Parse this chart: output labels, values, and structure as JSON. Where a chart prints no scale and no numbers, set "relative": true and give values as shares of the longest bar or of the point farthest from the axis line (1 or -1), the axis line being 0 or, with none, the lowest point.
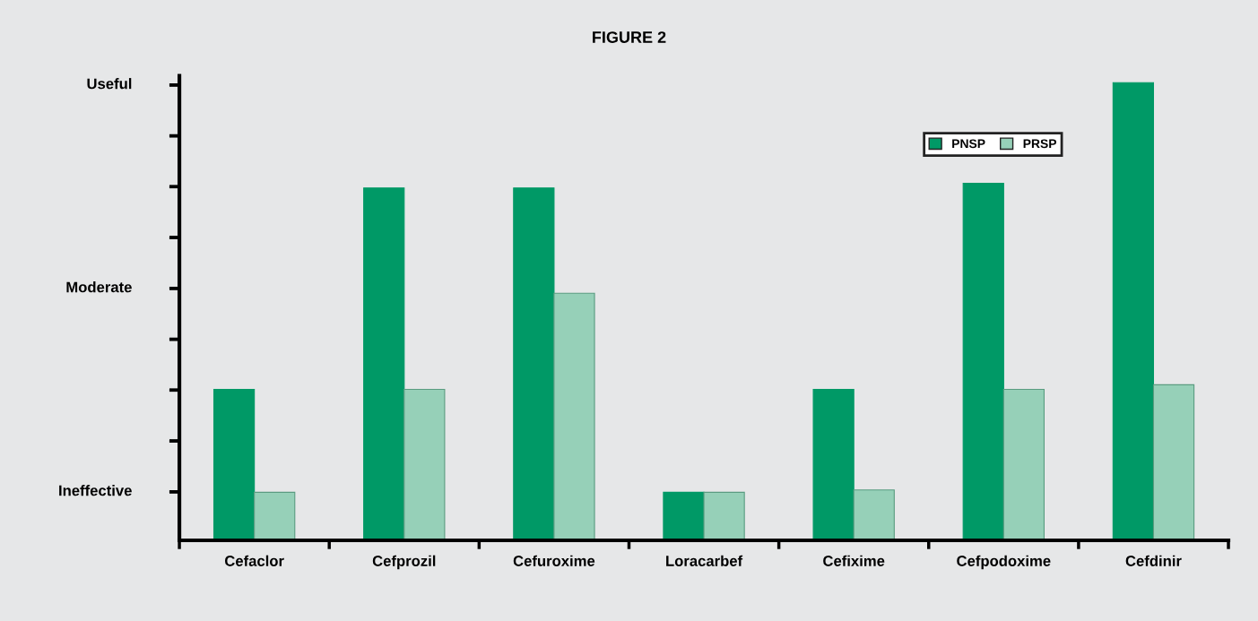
{
  "chart_data": {
    "type": "bar",
    "title": "FIGURE 2",
    "relative": true,
    "categories": [
      "Cefaclor",
      "Cefprozil",
      "Cefuroxime",
      "Loracarbef",
      "Cefixime",
      "Cefpodoxime",
      "Cefdinir"
    ],
    "series": [
      {
        "name": "PNSP",
        "color": "#009966",
        "values": [
          0.33,
          0.77,
          0.77,
          0.105,
          0.33,
          0.78,
          1
        ]
      },
      {
        "name": "PRSP",
        "color": "#96d0b8",
        "values": [
          0.105,
          0.33,
          0.54,
          0.105,
          0.11,
          0.33,
          0.34
        ]
      }
    ],
    "annotations": [
      "Ineffective",
      "Moderate",
      "Useful"
    ],
    "grid": false,
    "legend": "top right"
  }
}
